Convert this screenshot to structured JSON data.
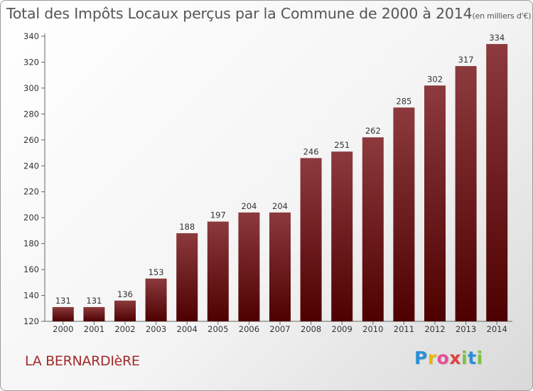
{
  "header": {
    "title": "Total des Impôts Locaux perçus par la Commune de 2000 à 2014",
    "unit": "(en milliers d'€)"
  },
  "footer": {
    "commune": "LA BERNARDIèRE",
    "logo_letters": [
      "P",
      "r",
      "o",
      "x",
      "i",
      "t",
      "i"
    ],
    "logo_colors": [
      "#2b8fd6",
      "#f0b400",
      "#e84c9a",
      "#e04040",
      "#7cc242",
      "#2b8fd6",
      "#7cc242"
    ]
  },
  "colors": {
    "bar_top": "#8c3a3d",
    "bar_bottom": "#4e0000",
    "axis": "#666666",
    "label": "#333333"
  },
  "chart_data": {
    "type": "bar",
    "title": "Total des Impôts Locaux perçus par la Commune de 2000 à 2014",
    "xlabel": "",
    "ylabel": "en milliers d'€",
    "categories": [
      "2000",
      "2001",
      "2002",
      "2003",
      "2004",
      "2005",
      "2006",
      "2007",
      "2008",
      "2009",
      "2010",
      "2011",
      "2012",
      "2013",
      "2014"
    ],
    "values": [
      131,
      131,
      136,
      153,
      188,
      197,
      204,
      204,
      246,
      251,
      262,
      285,
      302,
      317,
      334
    ],
    "ylim": [
      120,
      340
    ],
    "yticks": [
      120,
      140,
      160,
      180,
      200,
      220,
      240,
      260,
      280,
      300,
      320,
      340
    ],
    "grid": false,
    "legend": "none"
  }
}
